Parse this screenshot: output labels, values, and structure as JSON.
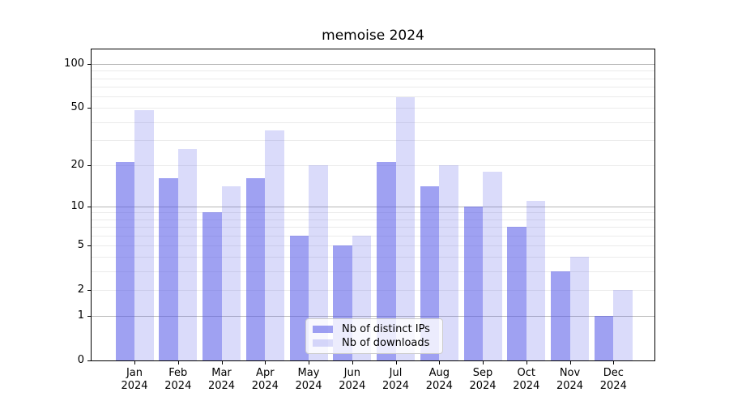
{
  "title": "memoise 2024",
  "chart_data": {
    "type": "bar",
    "title": "memoise 2024",
    "categories": [
      "Jan",
      "Feb",
      "Mar",
      "Apr",
      "May",
      "Jun",
      "Jul",
      "Aug",
      "Sep",
      "Oct",
      "Nov",
      "Dec"
    ],
    "category_year": "2024",
    "series": [
      {
        "name": "Nb of distinct IPs",
        "values": [
          21,
          16,
          9,
          16,
          6,
          5,
          21,
          14,
          10,
          7,
          3,
          1
        ]
      },
      {
        "name": "Nb of downloads",
        "values": [
          48,
          26,
          14,
          35,
          20,
          6,
          59,
          20,
          18,
          11,
          4,
          2
        ]
      }
    ],
    "yscale": "log1p",
    "ytick_values": [
      0,
      1,
      2,
      5,
      10,
      20,
      50,
      100
    ],
    "ytick_labels": [
      "0",
      "1",
      "2",
      "5",
      "10",
      "20",
      "50",
      "100"
    ],
    "grid_major_values": [
      1,
      10,
      100
    ],
    "grid_minor_values": [
      2,
      3,
      4,
      5,
      6,
      7,
      8,
      9,
      20,
      30,
      40,
      50,
      60,
      70,
      80,
      90
    ],
    "ylim": [
      0,
      127
    ],
    "xlabel": "",
    "ylabel": "",
    "grid": "both",
    "legend_position": "lower center"
  },
  "legend": {
    "items": [
      {
        "label": "Nb of distinct IPs"
      },
      {
        "label": "Nb of downloads"
      }
    ]
  },
  "colors": {
    "bar_distinct_ips": "rgba(80,84,232,0.55)",
    "bar_downloads": "rgba(80,84,232,0.21)",
    "grid_major": "#b6b6b6",
    "grid_minor": "#ebebeb",
    "spine": "#000000",
    "legend_border": "#cccccc",
    "legend_bg": "rgba(255,255,255,0.8)"
  }
}
